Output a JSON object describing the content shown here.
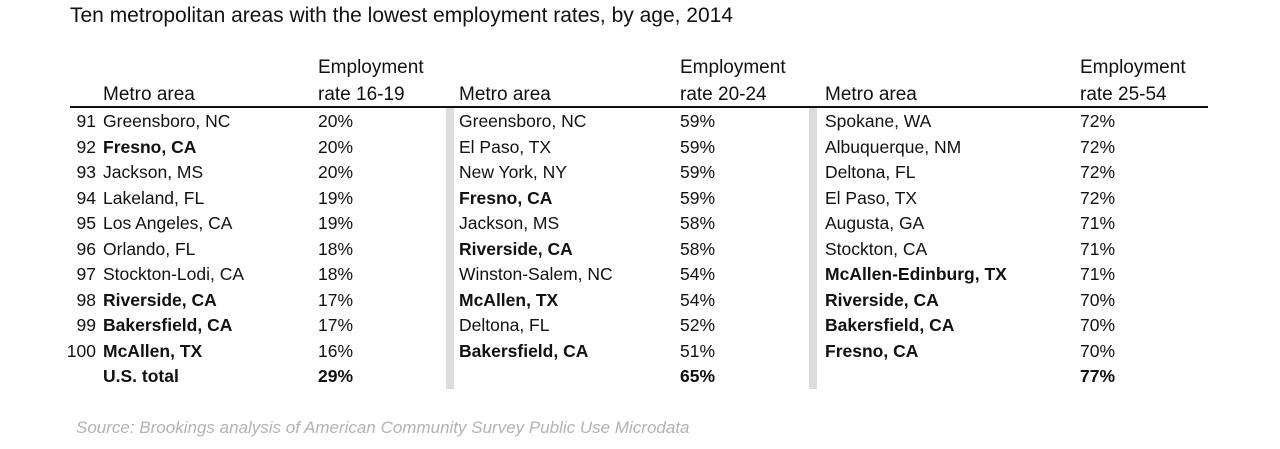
{
  "title": "Ten metropolitan areas with the lowest employment rates, by age, 2014",
  "source": "Source: Brookings analysis of American Community Survey Public Use Microdata",
  "headers": {
    "metro": "Metro area",
    "rate_line1": "Employment",
    "g1_line2": "rate 16-19",
    "g2_line2": "rate 20-24",
    "g3_line2": "rate 25-54"
  },
  "chart_data": {
    "type": "table",
    "title": "Ten metropolitan areas with the lowest employment rates, by age, 2014",
    "ranks": [
      "91",
      "92",
      "93",
      "94",
      "95",
      "96",
      "97",
      "98",
      "99",
      "100"
    ],
    "groups": [
      {
        "name": "rate 16-19",
        "rows": [
          {
            "metro": "Greensboro, NC",
            "rate": "20%",
            "bold": false
          },
          {
            "metro": "Fresno, CA",
            "rate": "20%",
            "bold": true
          },
          {
            "metro": "Jackson, MS",
            "rate": "20%",
            "bold": false
          },
          {
            "metro": "Lakeland, FL",
            "rate": "19%",
            "bold": false
          },
          {
            "metro": "Los Angeles, CA",
            "rate": "19%",
            "bold": false
          },
          {
            "metro": "Orlando, FL",
            "rate": "18%",
            "bold": false
          },
          {
            "metro": "Stockton-Lodi, CA",
            "rate": "18%",
            "bold": false
          },
          {
            "metro": "Riverside, CA",
            "rate": "17%",
            "bold": true
          },
          {
            "metro": "Bakersfield, CA",
            "rate": "17%",
            "bold": true
          },
          {
            "metro": "McAllen, TX",
            "rate": "16%",
            "bold": true
          }
        ],
        "total_label": "U.S. total",
        "total": "29%"
      },
      {
        "name": "rate 20-24",
        "rows": [
          {
            "metro": "Greensboro, NC",
            "rate": "59%",
            "bold": false
          },
          {
            "metro": "El Paso, TX",
            "rate": "59%",
            "bold": false
          },
          {
            "metro": "New York, NY",
            "rate": "59%",
            "bold": false
          },
          {
            "metro": "Fresno, CA",
            "rate": "59%",
            "bold": true
          },
          {
            "metro": "Jackson, MS",
            "rate": "58%",
            "bold": false
          },
          {
            "metro": "Riverside, CA",
            "rate": "58%",
            "bold": true
          },
          {
            "metro": "Winston-Salem, NC",
            "rate": "54%",
            "bold": false
          },
          {
            "metro": "McAllen, TX",
            "rate": "54%",
            "bold": true
          },
          {
            "metro": "Deltona, FL",
            "rate": "52%",
            "bold": false
          },
          {
            "metro": "Bakersfield, CA",
            "rate": "51%",
            "bold": true
          }
        ],
        "total_label": "",
        "total": "65%"
      },
      {
        "name": "rate 25-54",
        "rows": [
          {
            "metro": "Spokane, WA",
            "rate": "72%",
            "bold": false
          },
          {
            "metro": "Albuquerque, NM",
            "rate": "72%",
            "bold": false
          },
          {
            "metro": "Deltona, FL",
            "rate": "72%",
            "bold": false
          },
          {
            "metro": "El Paso, TX",
            "rate": "72%",
            "bold": false
          },
          {
            "metro": "Augusta, GA",
            "rate": "71%",
            "bold": false
          },
          {
            "metro": "Stockton, CA",
            "rate": "71%",
            "bold": false
          },
          {
            "metro": "McAllen-Edinburg, TX",
            "rate": "71%",
            "bold": true
          },
          {
            "metro": "Riverside, CA",
            "rate": "70%",
            "bold": true
          },
          {
            "metro": "Bakersfield, CA",
            "rate": "70%",
            "bold": true
          },
          {
            "metro": "Fresno, CA",
            "rate": "70%",
            "bold": true
          }
        ],
        "total_label": "",
        "total": "77%"
      }
    ]
  },
  "colors": {
    "text": "#111111",
    "separator": "#dcdcdc",
    "source": "#b3b3b3"
  }
}
